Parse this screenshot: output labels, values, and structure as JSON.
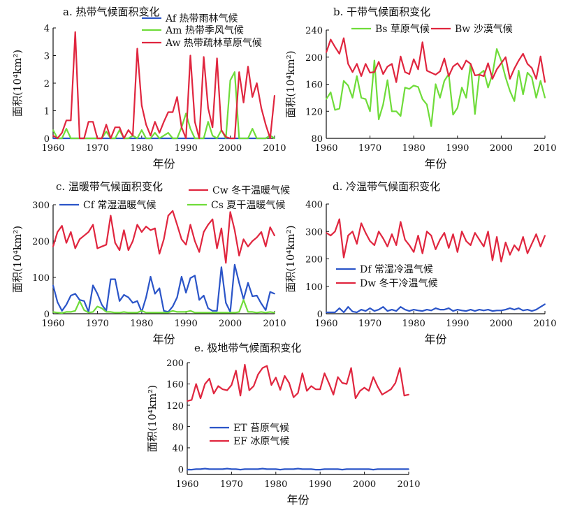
{
  "colors": {
    "blue": "#2b55c8",
    "green": "#6fdc3a",
    "red": "#e0263f",
    "axis": "#111111"
  },
  "chart_data": [
    {
      "type": "line",
      "title": "a. 热带气候面积变化",
      "xlabel": "年份",
      "ylabel": "面积(10⁴km²)",
      "xlim": [
        1960,
        2010
      ],
      "ylim": [
        0,
        4
      ],
      "xticks": [
        1960,
        1970,
        1980,
        1990,
        2000,
        2010
      ],
      "yticks": [
        0,
        1,
        2,
        3,
        4
      ],
      "x": [
        1960,
        1961,
        1962,
        1963,
        1964,
        1965,
        1966,
        1967,
        1968,
        1969,
        1970,
        1971,
        1972,
        1973,
        1974,
        1975,
        1976,
        1977,
        1978,
        1979,
        1980,
        1981,
        1982,
        1983,
        1984,
        1985,
        1986,
        1987,
        1988,
        1989,
        1990,
        1991,
        1992,
        1993,
        1994,
        1995,
        1996,
        1997,
        1998,
        1999,
        2000,
        2001,
        2002,
        2003,
        2004,
        2005,
        2006,
        2007,
        2008,
        2009,
        2010
      ],
      "series": [
        {
          "name": "Af 热带雨林气候",
          "color": "blue",
          "values": [
            0,
            0,
            0,
            0,
            0,
            0,
            0,
            0,
            0,
            0,
            0,
            0,
            0,
            0,
            0,
            0,
            0,
            0,
            0,
            0,
            0,
            0,
            0,
            0,
            0,
            0,
            0,
            0,
            0,
            0,
            0,
            0,
            0,
            0,
            0,
            0,
            0,
            0,
            0,
            0,
            0,
            0,
            0,
            0,
            0,
            0,
            0,
            0,
            0,
            0.1,
            0
          ]
        },
        {
          "name": "Am 热带季风气候",
          "color": "green",
          "values": [
            0.3,
            0,
            0,
            0.35,
            0,
            0,
            0,
            0,
            0,
            0,
            0,
            0,
            0.25,
            0,
            0,
            0.3,
            0,
            0,
            0.1,
            0,
            0.3,
            0,
            0,
            0.2,
            0,
            0.1,
            0.2,
            0,
            0,
            0.4,
            0.9,
            0.35,
            0,
            0,
            0,
            0.6,
            0.1,
            0,
            0.3,
            0,
            2.1,
            2.4,
            0,
            0,
            0,
            0.35,
            0,
            0,
            0,
            0.1,
            0
          ]
        },
        {
          "name": "Aw 热带疏林草原气候",
          "color": "red",
          "values": [
            0.1,
            0,
            0.2,
            0.65,
            0.65,
            3.85,
            0,
            0,
            0.6,
            0.6,
            0,
            0,
            0.5,
            0,
            0.4,
            0.4,
            0,
            0.3,
            0.1,
            3.25,
            1.2,
            0.5,
            0.1,
            0.6,
            0.2,
            0.6,
            0.95,
            0.95,
            1.5,
            0.4,
            0,
            3,
            0.6,
            0,
            2.95,
            1.1,
            0.4,
            2.9,
            0.3,
            0.05,
            0,
            0,
            2.4,
            1.3,
            2.6,
            1.5,
            2,
            1.1,
            0.5,
            0,
            1.55
          ]
        }
      ]
    },
    {
      "type": "line",
      "title": "b. 干带气候面积变化",
      "xlabel": "年份",
      "ylabel": "面积(10⁴km²)",
      "xlim": [
        1960,
        2010
      ],
      "ylim": [
        80,
        240
      ],
      "xticks": [
        1960,
        1970,
        1980,
        1990,
        2000,
        2010
      ],
      "yticks": [
        80,
        120,
        160,
        200,
        240
      ],
      "x": [
        1960,
        1961,
        1962,
        1963,
        1964,
        1965,
        1966,
        1967,
        1968,
        1969,
        1970,
        1971,
        1972,
        1973,
        1974,
        1975,
        1976,
        1977,
        1978,
        1979,
        1980,
        1981,
        1982,
        1983,
        1984,
        1985,
        1986,
        1987,
        1988,
        1989,
        1990,
        1991,
        1992,
        1993,
        1994,
        1995,
        1996,
        1997,
        1998,
        1999,
        2000,
        2001,
        2002,
        2003,
        2004,
        2005,
        2006,
        2007,
        2008,
        2009,
        2010
      ],
      "series": [
        {
          "name": "Bs 草原气候",
          "color": "green",
          "values": [
            138,
            148,
            122,
            124,
            165,
            158,
            140,
            172,
            140,
            138,
            120,
            195,
            108,
            130,
            166,
            120,
            120,
            113,
            155,
            153,
            158,
            156,
            138,
            130,
            98,
            160,
            140,
            165,
            175,
            115,
            125,
            155,
            140,
            190,
            116,
            175,
            180,
            155,
            175,
            212,
            195,
            170,
            150,
            135,
            180,
            145,
            177,
            170,
            140,
            165,
            140
          ]
        },
        {
          "name": "Bw 沙漠气候",
          "color": "red",
          "values": [
            207,
            226,
            215,
            205,
            228,
            190,
            178,
            190,
            172,
            190,
            177,
            178,
            193,
            175,
            186,
            190,
            163,
            201,
            178,
            175,
            197,
            182,
            222,
            180,
            177,
            174,
            179,
            198,
            172,
            186,
            191,
            182,
            195,
            190,
            173,
            174,
            172,
            191,
            168,
            182,
            191,
            200,
            168,
            183,
            195,
            205,
            190,
            184,
            168,
            201,
            163
          ]
        }
      ]
    },
    {
      "type": "line",
      "title": "c. 温暖带气候面积变化",
      "xlabel": "年份",
      "ylabel": "面积(10⁴km²)",
      "xlim": [
        1960,
        2010
      ],
      "ylim": [
        0,
        300
      ],
      "xticks": [
        1960,
        1970,
        1980,
        1990,
        2000,
        2010
      ],
      "yticks": [
        0,
        100,
        200,
        300
      ],
      "x": [
        1960,
        1961,
        1962,
        1963,
        1964,
        1965,
        1966,
        1967,
        1968,
        1969,
        1970,
        1971,
        1972,
        1973,
        1974,
        1975,
        1976,
        1977,
        1978,
        1979,
        1980,
        1981,
        1982,
        1983,
        1984,
        1985,
        1986,
        1987,
        1988,
        1989,
        1990,
        1991,
        1992,
        1993,
        1994,
        1995,
        1996,
        1997,
        1998,
        1999,
        2000,
        2001,
        2002,
        2003,
        2004,
        2005,
        2006,
        2007,
        2008,
        2009,
        2010
      ],
      "series": [
        {
          "name": "Cw 冬干温暖气候",
          "color": "red",
          "values": [
            185,
            225,
            242,
            195,
            225,
            180,
            205,
            215,
            225,
            245,
            180,
            185,
            190,
            270,
            195,
            175,
            230,
            175,
            200,
            245,
            225,
            240,
            230,
            235,
            165,
            205,
            270,
            283,
            245,
            205,
            190,
            245,
            200,
            170,
            225,
            245,
            260,
            180,
            235,
            140,
            280,
            230,
            160,
            205,
            185,
            200,
            210,
            225,
            185,
            238,
            215
          ]
        },
        {
          "name": "Cf 常湿温暖气候",
          "color": "blue",
          "values": [
            78,
            32,
            8,
            25,
            50,
            55,
            38,
            35,
            5,
            78,
            55,
            25,
            8,
            95,
            95,
            35,
            52,
            45,
            30,
            35,
            5,
            45,
            102,
            55,
            70,
            8,
            5,
            20,
            45,
            102,
            58,
            98,
            105,
            38,
            50,
            15,
            8,
            8,
            128,
            30,
            5,
            135,
            85,
            40,
            85,
            48,
            50,
            28,
            10,
            60,
            55
          ]
        },
        {
          "name": "Cs 夏干温暖气候",
          "color": "green",
          "values": [
            5,
            3,
            2,
            5,
            5,
            8,
            35,
            10,
            3,
            5,
            20,
            15,
            5,
            5,
            3,
            3,
            5,
            3,
            3,
            3,
            8,
            3,
            3,
            3,
            3,
            3,
            3,
            8,
            5,
            5,
            5,
            8,
            3,
            3,
            3,
            3,
            3,
            3,
            3,
            3,
            3,
            3,
            5,
            38,
            5,
            5,
            3,
            5,
            3,
            5,
            3
          ]
        }
      ]
    },
    {
      "type": "line",
      "title": "d. 冷温带气候面积变化",
      "xlabel": "年份",
      "ylabel": "面积(10⁴km²)",
      "xlim": [
        1960,
        2010
      ],
      "ylim": [
        0,
        400
      ],
      "xticks": [
        1960,
        1970,
        1980,
        1990,
        2000,
        2010
      ],
      "yticks": [
        0,
        100,
        200,
        300,
        400
      ],
      "x": [
        1960,
        1961,
        1962,
        1963,
        1964,
        1965,
        1966,
        1967,
        1968,
        1969,
        1970,
        1971,
        1972,
        1973,
        1974,
        1975,
        1976,
        1977,
        1978,
        1979,
        1980,
        1981,
        1982,
        1983,
        1984,
        1985,
        1986,
        1987,
        1988,
        1989,
        1990,
        1991,
        1992,
        1993,
        1994,
        1995,
        1996,
        1997,
        1998,
        1999,
        2000,
        2001,
        2002,
        2003,
        2004,
        2005,
        2006,
        2007,
        2008,
        2009,
        2010
      ],
      "series": [
        {
          "name": "Df 常湿冷温气候",
          "color": "blue",
          "values": [
            5,
            5,
            5,
            20,
            5,
            25,
            8,
            5,
            15,
            10,
            20,
            10,
            15,
            25,
            10,
            15,
            10,
            25,
            15,
            10,
            15,
            12,
            10,
            15,
            12,
            20,
            15,
            15,
            20,
            10,
            15,
            12,
            10,
            15,
            10,
            15,
            12,
            15,
            10,
            12,
            12,
            15,
            20,
            15,
            20,
            12,
            15,
            10,
            15,
            25,
            35
          ]
        },
        {
          "name": "Dw 冬干冷温气候",
          "color": "red",
          "values": [
            295,
            285,
            300,
            345,
            205,
            285,
            300,
            255,
            330,
            295,
            265,
            250,
            300,
            275,
            245,
            290,
            250,
            335,
            270,
            250,
            225,
            285,
            220,
            300,
            285,
            235,
            270,
            295,
            240,
            290,
            225,
            300,
            265,
            250,
            295,
            270,
            245,
            300,
            195,
            280,
            190,
            260,
            215,
            250,
            230,
            280,
            220,
            255,
            290,
            245,
            285
          ]
        }
      ]
    },
    {
      "type": "line",
      "title": "e. 极地带气候面积变化",
      "xlabel": "年份",
      "ylabel": "面积(10⁴km²)",
      "xlim": [
        1960,
        2010
      ],
      "ylim": [
        -10,
        200
      ],
      "xticks": [
        1960,
        1970,
        1980,
        1990,
        2000,
        2010
      ],
      "yticks": [
        0,
        40,
        80,
        120,
        160,
        200
      ],
      "x": [
        1960,
        1961,
        1962,
        1963,
        1964,
        1965,
        1966,
        1967,
        1968,
        1969,
        1970,
        1971,
        1972,
        1973,
        1974,
        1975,
        1976,
        1977,
        1978,
        1979,
        1980,
        1981,
        1982,
        1983,
        1984,
        1985,
        1986,
        1987,
        1988,
        1989,
        1990,
        1991,
        1992,
        1993,
        1994,
        1995,
        1996,
        1997,
        1998,
        1999,
        2000,
        2001,
        2002,
        2003,
        2004,
        2005,
        2006,
        2007,
        2008,
        2009,
        2010
      ],
      "series": [
        {
          "name": "ET 苔原气候",
          "color": "blue",
          "values": [
            -1,
            -1,
            0,
            0,
            1,
            0,
            0,
            0,
            0,
            1,
            0,
            0,
            -1,
            0,
            0,
            0,
            0,
            1,
            0,
            0,
            0,
            -1,
            0,
            0,
            0,
            1,
            0,
            0,
            0,
            -1,
            -1,
            0,
            0,
            0,
            0,
            -1,
            0,
            0,
            0,
            0,
            0,
            0,
            -1,
            0,
            0,
            0,
            0,
            0,
            0,
            0,
            0
          ]
        },
        {
          "name": "EF 冰原气候",
          "color": "red",
          "values": [
            128,
            130,
            160,
            133,
            160,
            170,
            142,
            156,
            150,
            148,
            158,
            185,
            138,
            196,
            148,
            156,
            178,
            190,
            194,
            158,
            172,
            149,
            175,
            162,
            135,
            143,
            180,
            147,
            156,
            150,
            150,
            180,
            161,
            140,
            173,
            162,
            160,
            190,
            133,
            147,
            153,
            147,
            173,
            155,
            140,
            145,
            150,
            162,
            190,
            138,
            140
          ]
        }
      ]
    }
  ]
}
